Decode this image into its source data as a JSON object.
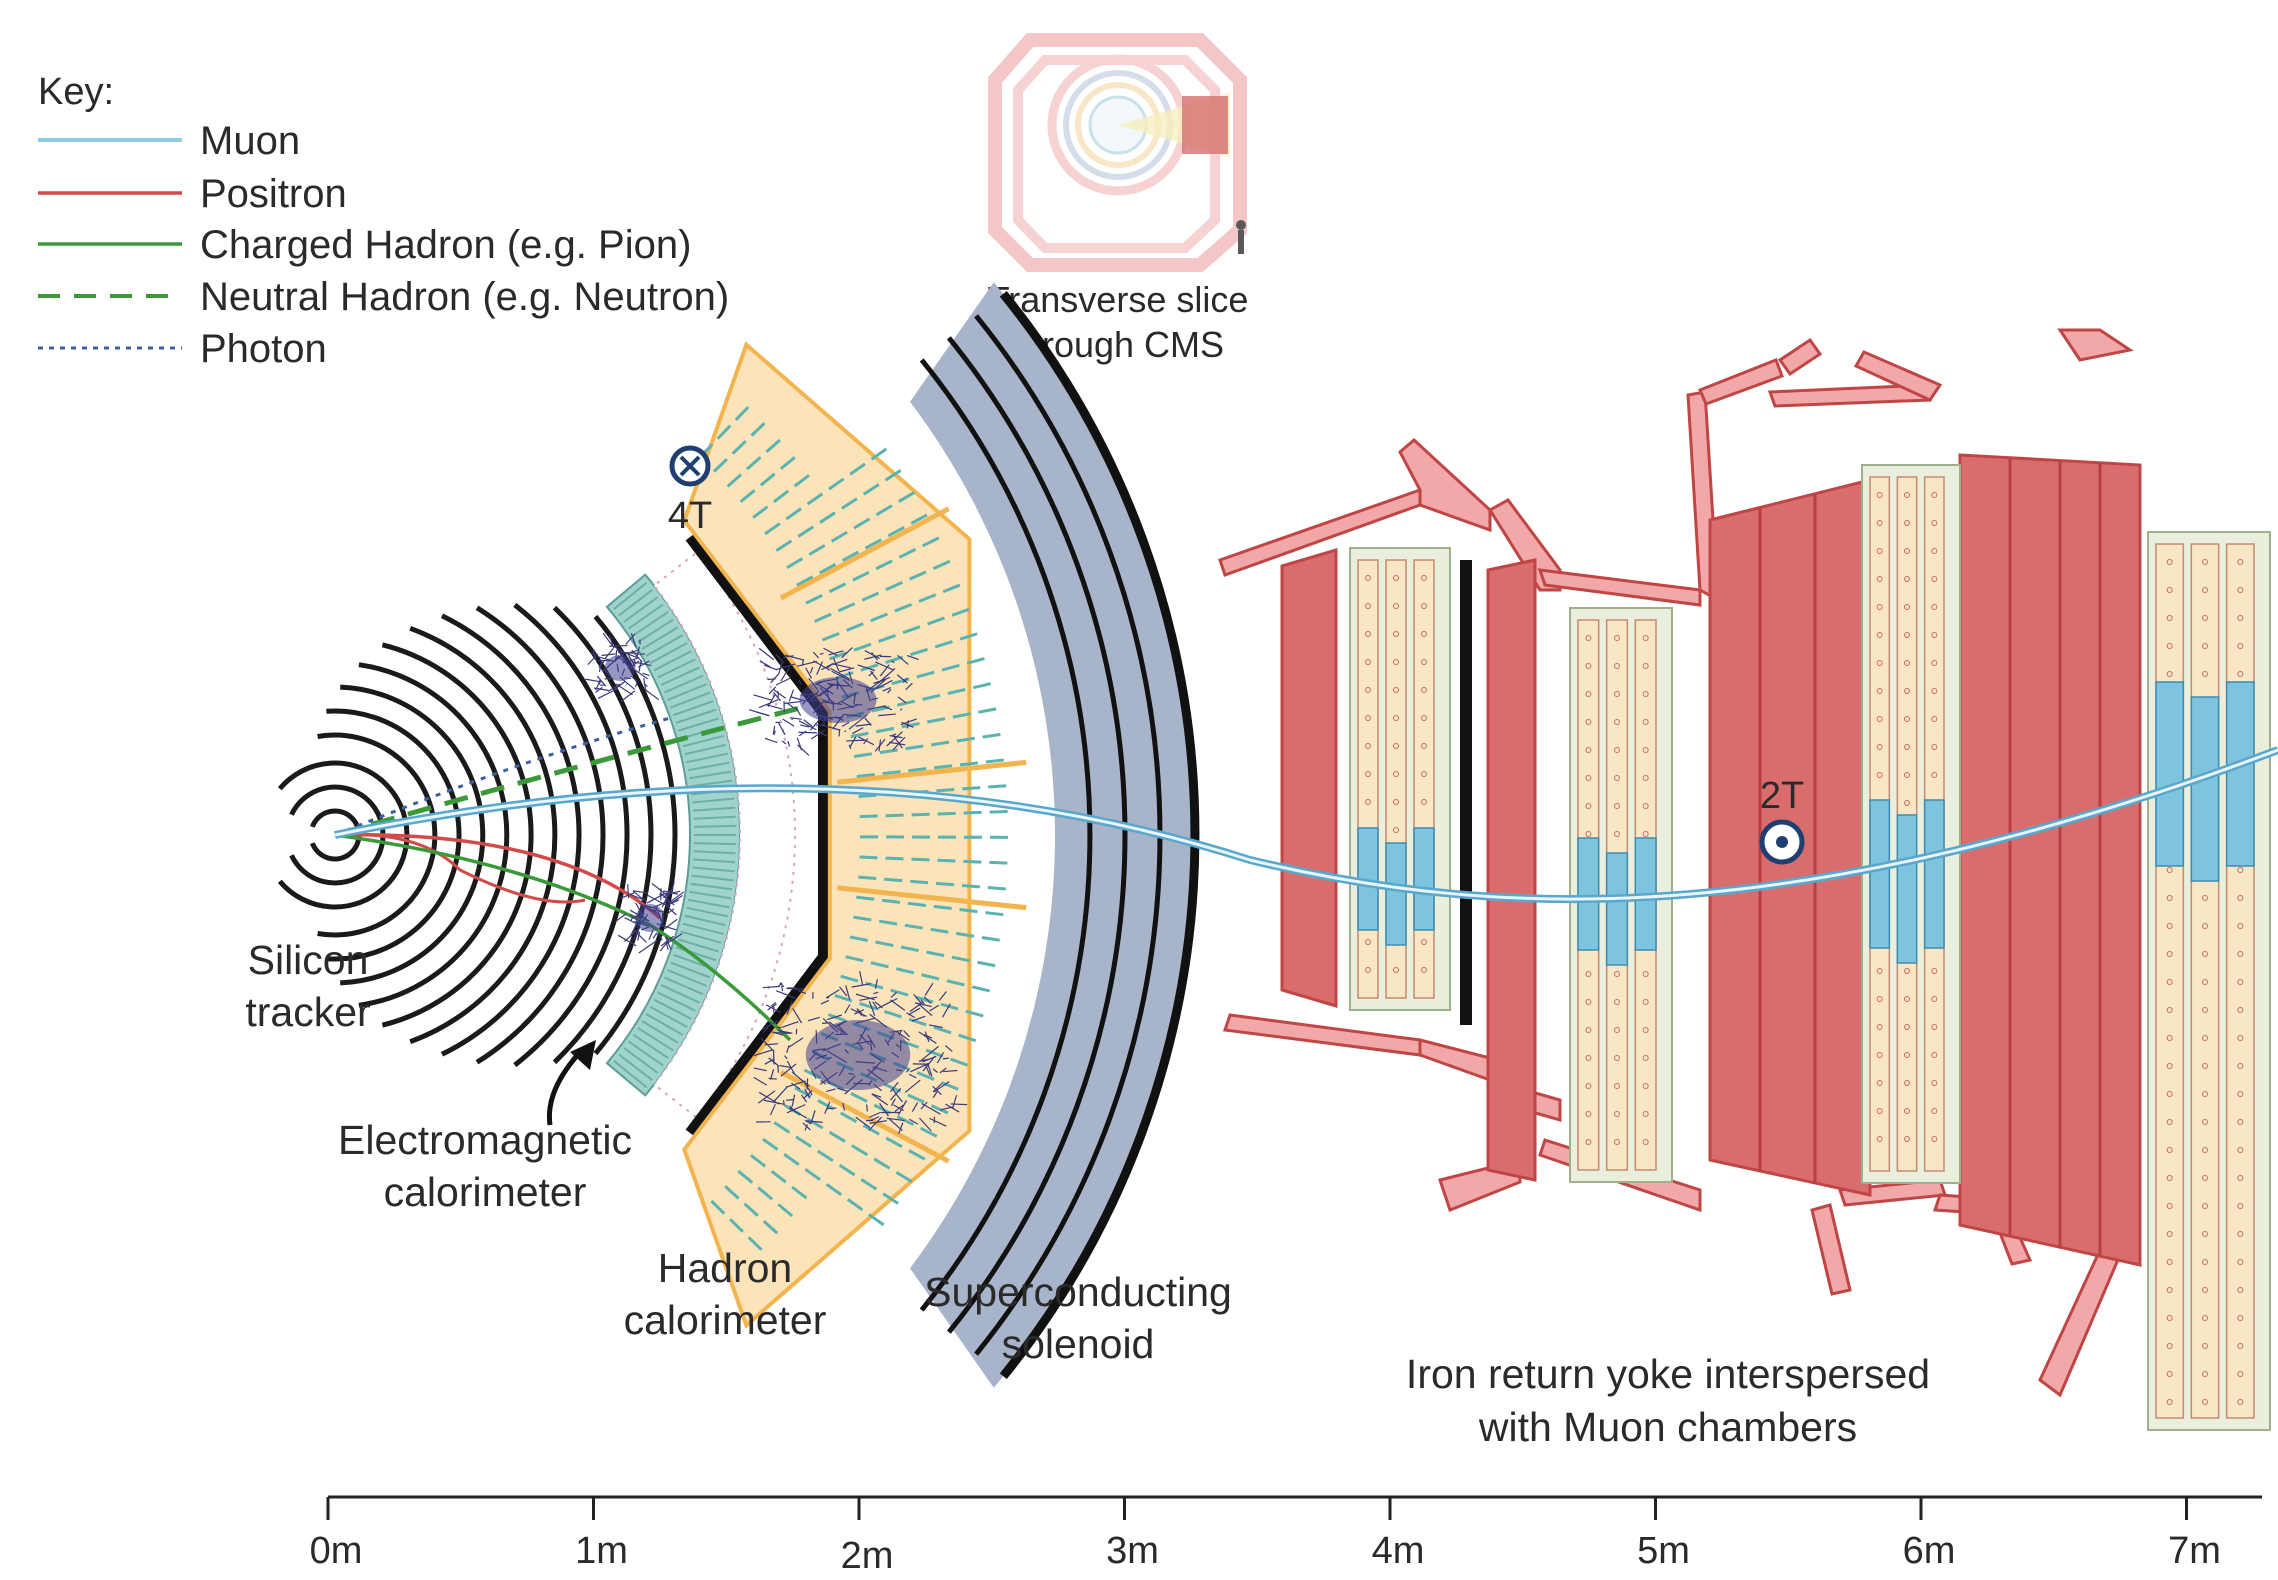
{
  "key": {
    "title": "Key:",
    "items": [
      {
        "label": "Muon",
        "color": "#8fcbe6",
        "style": "solid"
      },
      {
        "label": "Positron",
        "color": "#d24b4b",
        "style": "solid"
      },
      {
        "label": "Charged Hadron (e.g. Pion)",
        "color": "#3a9a3a",
        "style": "solid"
      },
      {
        "label": "Neutral Hadron (e.g. Neutron)",
        "color": "#3a9a3a",
        "style": "dashed"
      },
      {
        "label": "Photon",
        "color": "#3b5fa0",
        "style": "dotted"
      }
    ]
  },
  "inset": {
    "line1": "Transverse slice",
    "line2": "through CMS"
  },
  "components": {
    "tracker": {
      "line1": "Silicon",
      "line2": "tracker"
    },
    "ecal": {
      "line1": "Electromagnetic",
      "line2": "calorimeter"
    },
    "hcal": {
      "line1": "Hadron",
      "line2": "calorimeter"
    },
    "solenoid": {
      "line1": "Superconducting",
      "line2": "solenoid"
    },
    "yoke": {
      "line1": "Iron return yoke interspersed",
      "line2": "with Muon chambers"
    }
  },
  "fields": {
    "inner": "4T",
    "outer": "2T"
  },
  "axis": {
    "ticks": [
      "0m",
      "1m",
      "2m",
      "3m",
      "4m",
      "5m",
      "6m",
      "7m"
    ]
  },
  "colors": {
    "tracker": "#1a1a1a",
    "ecal": "#9fd3cc",
    "hcal_fill": "#fbe3ba",
    "hcal_edge": "#f2b44e",
    "solenoid": "#a8b4c9",
    "yoke": "#d96d6d",
    "yoke_edge": "#c04545",
    "muon_chamber": "#f9e6c4",
    "muon_hit": "#7fc4de"
  }
}
